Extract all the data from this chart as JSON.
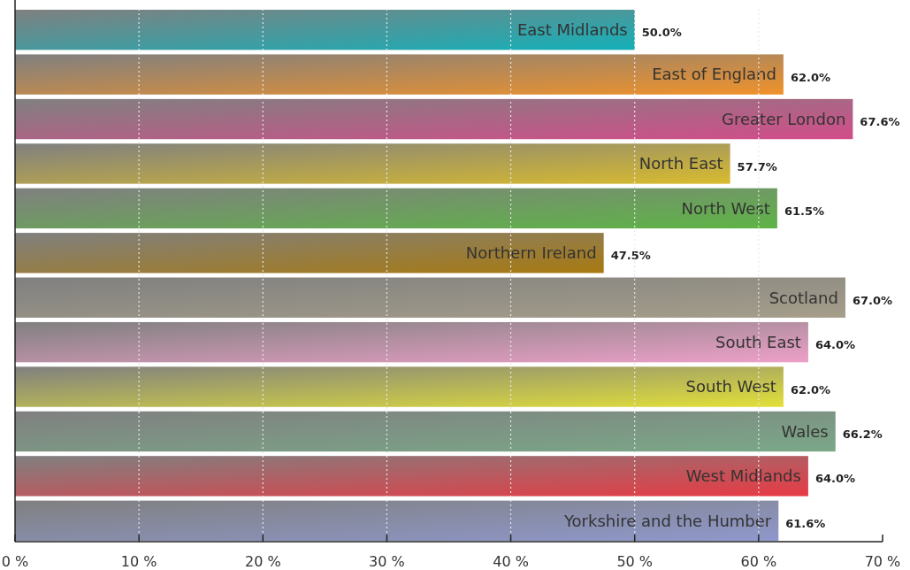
{
  "chart_data": {
    "type": "bar",
    "orientation": "horizontal",
    "categories": [
      "East Midlands",
      "East of England",
      "Greater London",
      "North East",
      "North West",
      "Northern Ireland",
      "Scotland",
      "South East",
      "South West",
      "Wales",
      "West Midlands",
      "Yorkshire and the Humber"
    ],
    "values": [
      50.0,
      62.0,
      67.6,
      57.7,
      61.5,
      47.5,
      67.0,
      64.0,
      62.0,
      66.2,
      64.0,
      61.6
    ],
    "value_labels": [
      "50.0%",
      "62.0%",
      "67.6%",
      "57.7%",
      "61.5%",
      "47.5%",
      "67.0%",
      "64.0%",
      "62.0%",
      "66.2%",
      "64.0%",
      "61.6%"
    ],
    "colors": [
      "#14b0b8",
      "#f0922a",
      "#d24d8a",
      "#d8bb2e",
      "#5eb446",
      "#a87a10",
      "#a59e8a",
      "#eda0c8",
      "#e2e038",
      "#7aa888",
      "#e83a44",
      "#8f98cc"
    ],
    "xlim": [
      0,
      70
    ],
    "xticks": [
      {
        "value": 0,
        "label": "0 %"
      },
      {
        "value": 10,
        "label": "10 %"
      },
      {
        "value": 20,
        "label": "20 %"
      },
      {
        "value": 30,
        "label": "30 %"
      },
      {
        "value": 40,
        "label": "40 %"
      },
      {
        "value": 50,
        "label": "50 %"
      },
      {
        "value": 60,
        "label": "60 %"
      },
      {
        "value": 70,
        "label": "70 %"
      }
    ],
    "grid": "x"
  }
}
